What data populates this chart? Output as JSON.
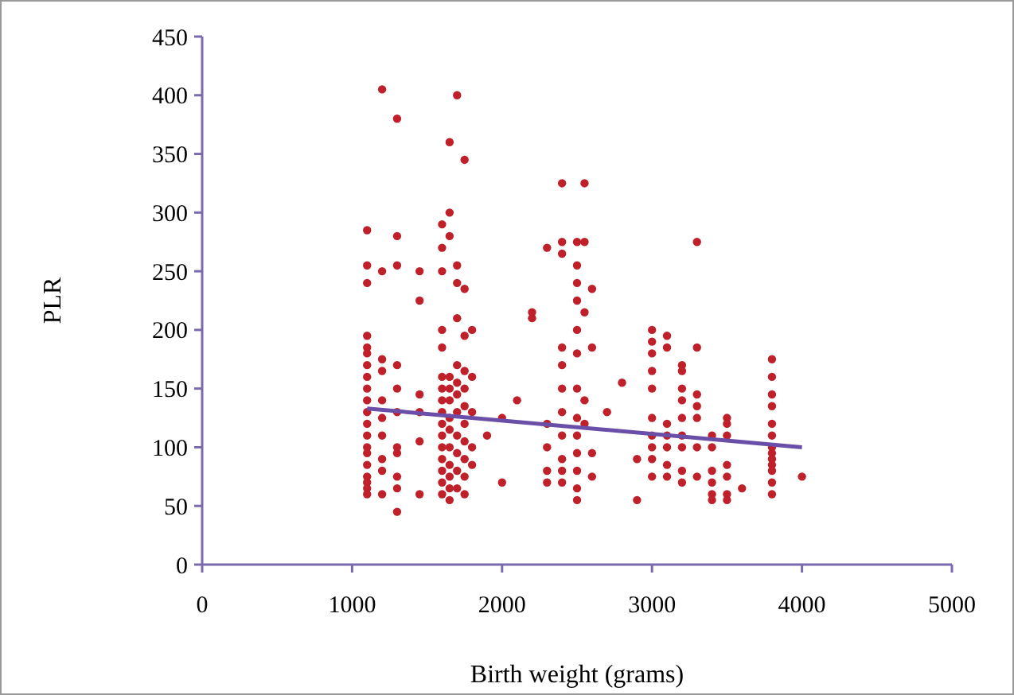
{
  "chart_data": {
    "type": "scatter",
    "xlabel": "Birth weight (grams)",
    "ylabel": "PLR",
    "xlim": [
      0,
      5000
    ],
    "xticks": [
      0,
      1000,
      2000,
      3000,
      4000,
      5000
    ],
    "ylim": [
      0,
      450
    ],
    "yticks": [
      0,
      50,
      100,
      150,
      200,
      250,
      300,
      350,
      400,
      450
    ],
    "grid": false,
    "series": [
      {
        "color": "#c0202a",
        "marker": "circle",
        "x": [
          1100,
          1100,
          1100,
          1100,
          1100,
          1100,
          1100,
          1100,
          1100,
          1100,
          1100,
          1100,
          1100,
          1100,
          1100,
          1100,
          1100,
          1100,
          1100,
          1100,
          1200,
          1200,
          1200,
          1200,
          1200,
          1200,
          1200,
          1200,
          1200,
          1200,
          1300,
          1300,
          1300,
          1300,
          1300,
          1300,
          1300,
          1300,
          1300,
          1300,
          1300,
          1450,
          1450,
          1450,
          1450,
          1450,
          1450,
          1600,
          1600,
          1600,
          1600,
          1600,
          1600,
          1600,
          1600,
          1600,
          1600,
          1600,
          1600,
          1600,
          1600,
          1600,
          1600,
          1650,
          1650,
          1650,
          1650,
          1650,
          1650,
          1650,
          1650,
          1650,
          1650,
          1650,
          1650,
          1650,
          1700,
          1700,
          1700,
          1700,
          1700,
          1700,
          1700,
          1700,
          1700,
          1700,
          1700,
          1700,
          1750,
          1750,
          1750,
          1750,
          1750,
          1750,
          1750,
          1750,
          1750,
          1750,
          1750,
          1800,
          1800,
          1800,
          1800,
          1800,
          1900,
          2000,
          2000,
          2100,
          2200,
          2200,
          2300,
          2300,
          2300,
          2300,
          2300,
          2400,
          2400,
          2400,
          2400,
          2400,
          2400,
          2400,
          2400,
          2400,
          2400,
          2400,
          2500,
          2500,
          2500,
          2500,
          2500,
          2500,
          2500,
          2500,
          2500,
          2500,
          2500,
          2500,
          2500,
          2550,
          2550,
          2550,
          2550,
          2550,
          2600,
          2600,
          2600,
          2600,
          2700,
          2800,
          2900,
          2900,
          3000,
          3000,
          3000,
          3000,
          3000,
          3000,
          3000,
          3000,
          3000,
          3000,
          3100,
          3100,
          3100,
          3100,
          3100,
          3100,
          3100,
          3200,
          3200,
          3200,
          3200,
          3200,
          3200,
          3200,
          3200,
          3200,
          3300,
          3300,
          3300,
          3300,
          3300,
          3300,
          3300,
          3400,
          3400,
          3400,
          3400,
          3400,
          3400,
          3500,
          3500,
          3500,
          3500,
          3500,
          3500,
          3500,
          3600,
          3800,
          3800,
          3800,
          3800,
          3800,
          3800,
          3800,
          3800,
          3800,
          3800,
          3800,
          3800,
          3800,
          4000
        ],
        "values": [
          285,
          255,
          240,
          195,
          185,
          180,
          170,
          160,
          150,
          140,
          130,
          120,
          110,
          100,
          95,
          85,
          75,
          70,
          65,
          60,
          405,
          250,
          175,
          165,
          140,
          125,
          110,
          90,
          80,
          60,
          380,
          280,
          255,
          170,
          150,
          130,
          100,
          95,
          75,
          65,
          45,
          250,
          225,
          145,
          130,
          105,
          60,
          290,
          270,
          250,
          200,
          185,
          160,
          150,
          140,
          130,
          120,
          110,
          100,
          90,
          80,
          70,
          60,
          360,
          300,
          280,
          160,
          150,
          140,
          125,
          115,
          100,
          85,
          75,
          65,
          55,
          400,
          255,
          240,
          210,
          170,
          155,
          145,
          130,
          110,
          95,
          80,
          65,
          345,
          235,
          195,
          165,
          150,
          135,
          120,
          105,
          90,
          75,
          60,
          200,
          160,
          130,
          100,
          85,
          110,
          70,
          125,
          140,
          215,
          210,
          270,
          120,
          100,
          80,
          70,
          325,
          275,
          265,
          185,
          170,
          150,
          130,
          110,
          90,
          80,
          70,
          275,
          255,
          240,
          225,
          200,
          180,
          150,
          125,
          110,
          95,
          80,
          65,
          55,
          325,
          275,
          215,
          140,
          120,
          235,
          185,
          95,
          75,
          130,
          155,
          90,
          55,
          200,
          190,
          180,
          165,
          150,
          125,
          110,
          100,
          90,
          75,
          195,
          185,
          120,
          110,
          100,
          85,
          75,
          170,
          165,
          150,
          140,
          125,
          110,
          100,
          80,
          70,
          275,
          185,
          145,
          135,
          125,
          100,
          75,
          110,
          100,
          80,
          70,
          60,
          55,
          125,
          120,
          110,
          85,
          75,
          60,
          55,
          65,
          175,
          160,
          145,
          135,
          120,
          110,
          100,
          95,
          90,
          85,
          80,
          70,
          60,
          75
        ]
      },
      {
        "type": "line",
        "color": "#6a4fa8",
        "marker": "none",
        "x": [
          1100,
          4000
        ],
        "values": [
          133,
          100
        ]
      }
    ]
  }
}
